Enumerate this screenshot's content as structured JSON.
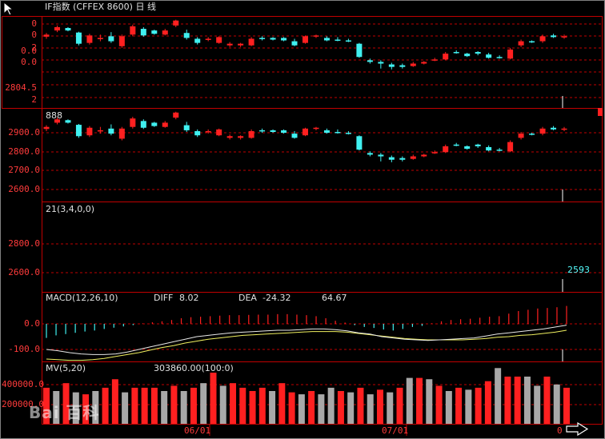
{
  "title": "IF指数 (CFFEX 8600) 日 线",
  "colors": {
    "up": "#ff2020",
    "down": "#40f0f0",
    "grid": "#c00000",
    "frame": "#c00000",
    "diff": "#e8e8e8",
    "dea": "#f0f060",
    "volume_gray": "#a8a8a8"
  },
  "panel1": {
    "axis_labels": [
      "0",
      "0",
      "2",
      "0.0",
      "0.0",
      "2804.5",
      "2"
    ],
    "right_marker": ""
  },
  "panel2": {
    "label": "888",
    "axis_labels": [
      "2900.0",
      "2800.0",
      "2700.0",
      "2600.0"
    ]
  },
  "panel3": {
    "label": "21(3,4,0,0)",
    "axis_labels": [
      "2800.0",
      "2600.0"
    ],
    "value": "2593"
  },
  "macd": {
    "label": "MACD(12,26,10)",
    "diff_label": "DIFF",
    "diff_value": "8.02",
    "dea_label": "DEA",
    "dea_value": "-24.32",
    "macd_value": "64.67",
    "axis_labels": [
      "0.0",
      "-100.0"
    ]
  },
  "volume": {
    "label": "MV(5,20)",
    "value": "303860.00(100:0)",
    "axis_labels": [
      "400000.0",
      "200000.0"
    ]
  },
  "dates": [
    "06/01",
    "07/01",
    "0"
  ],
  "watermark": "Bai 百科",
  "icons": [
    "arrow-cursor-icon",
    "right-arrow-nav-icon"
  ],
  "candles1": [
    {
      "o": 0.45,
      "c": 0.4,
      "h": 0.36,
      "l": 0.5,
      "up": true
    },
    {
      "o": 0.3,
      "c": 0.22,
      "h": 0.18,
      "l": 0.34,
      "up": true
    },
    {
      "o": 0.24,
      "c": 0.3,
      "h": 0.22,
      "l": 0.32,
      "up": false
    },
    {
      "o": 0.35,
      "c": 0.62,
      "h": 0.33,
      "l": 0.66,
      "up": false
    },
    {
      "o": 0.6,
      "c": 0.42,
      "h": 0.38,
      "l": 0.64,
      "up": true
    },
    {
      "o": 0.48,
      "c": 0.5,
      "h": 0.4,
      "l": 0.56,
      "up": true
    },
    {
      "o": 0.44,
      "c": 0.56,
      "h": 0.34,
      "l": 0.6,
      "up": false
    },
    {
      "o": 0.68,
      "c": 0.44,
      "h": 0.4,
      "l": 0.72,
      "up": true
    },
    {
      "o": 0.4,
      "c": 0.2,
      "h": 0.16,
      "l": 0.44,
      "up": true
    },
    {
      "o": 0.26,
      "c": 0.42,
      "h": 0.22,
      "l": 0.45,
      "up": false
    },
    {
      "o": 0.3,
      "c": 0.38,
      "h": 0.28,
      "l": 0.4,
      "up": false
    },
    {
      "o": 0.4,
      "c": 0.3,
      "h": 0.26,
      "l": 0.42,
      "up": true
    },
    {
      "o": 0.18,
      "c": 0.06,
      "h": 0.04,
      "l": 0.22,
      "up": true
    },
    {
      "o": 0.36,
      "c": 0.48,
      "h": 0.28,
      "l": 0.52,
      "up": false
    },
    {
      "o": 0.5,
      "c": 0.6,
      "h": 0.46,
      "l": 0.64,
      "up": false
    },
    {
      "o": 0.52,
      "c": 0.5,
      "h": 0.46,
      "l": 0.56,
      "up": true
    },
    {
      "o": 0.6,
      "c": 0.46,
      "h": 0.44,
      "l": 0.62,
      "up": true
    },
    {
      "o": 0.62,
      "c": 0.66,
      "h": 0.58,
      "l": 0.7,
      "up": true
    },
    {
      "o": 0.66,
      "c": 0.62,
      "h": 0.6,
      "l": 0.7,
      "up": true
    },
    {
      "o": 0.66,
      "c": 0.5,
      "h": 0.46,
      "l": 0.68,
      "up": true
    },
    {
      "o": 0.48,
      "c": 0.5,
      "h": 0.44,
      "l": 0.54,
      "up": false
    },
    {
      "o": 0.48,
      "c": 0.52,
      "h": 0.46,
      "l": 0.54,
      "up": false
    },
    {
      "o": 0.48,
      "c": 0.54,
      "h": 0.46,
      "l": 0.56,
      "up": false
    },
    {
      "o": 0.56,
      "c": 0.66,
      "h": 0.5,
      "l": 0.68,
      "up": false
    },
    {
      "o": 0.6,
      "c": 0.44,
      "h": 0.42,
      "l": 0.62,
      "up": true
    },
    {
      "o": 0.44,
      "c": 0.42,
      "h": 0.4,
      "l": 0.48,
      "up": true
    },
    {
      "o": 0.48,
      "c": 0.54,
      "h": 0.44,
      "l": 0.56,
      "up": false
    },
    {
      "o": 0.52,
      "c": 0.52,
      "h": 0.46,
      "l": 0.56,
      "up": false
    },
    {
      "o": 0.54,
      "c": 0.56,
      "h": 0.5,
      "l": 0.58,
      "up": false
    },
    {
      "o": 0.62,
      "c": 0.94,
      "h": 0.6,
      "l": 0.96,
      "up": false
    },
    {
      "o": 1.02,
      "c": 1.06,
      "h": 0.98,
      "l": 1.1,
      "up": false
    },
    {
      "o": 1.06,
      "c": 1.1,
      "h": 1.02,
      "l": 1.22,
      "up": false
    },
    {
      "o": 1.12,
      "c": 1.18,
      "h": 1.08,
      "l": 1.24,
      "up": false
    },
    {
      "o": 1.14,
      "c": 1.18,
      "h": 1.1,
      "l": 1.22,
      "up": false
    },
    {
      "o": 1.16,
      "c": 1.1,
      "h": 1.06,
      "l": 1.18,
      "up": true
    },
    {
      "o": 1.1,
      "c": 1.06,
      "h": 1.04,
      "l": 1.12,
      "up": true
    },
    {
      "o": 1.02,
      "c": 1.0,
      "h": 0.96,
      "l": 1.04,
      "up": true
    },
    {
      "o": 1.0,
      "c": 0.86,
      "h": 0.82,
      "l": 1.02,
      "up": true
    },
    {
      "o": 0.82,
      "c": 0.84,
      "h": 0.78,
      "l": 0.86,
      "up": false
    },
    {
      "o": 0.86,
      "c": 0.92,
      "h": 0.84,
      "l": 0.94,
      "up": false
    },
    {
      "o": 0.86,
      "c": 0.82,
      "h": 0.8,
      "l": 0.9,
      "up": false
    },
    {
      "o": 0.88,
      "c": 0.96,
      "h": 0.84,
      "l": 0.98,
      "up": false
    },
    {
      "o": 0.94,
      "c": 0.96,
      "h": 0.9,
      "l": 0.98,
      "up": false
    },
    {
      "o": 0.98,
      "c": 0.76,
      "h": 0.72,
      "l": 1.0,
      "up": true
    },
    {
      "o": 0.66,
      "c": 0.56,
      "h": 0.52,
      "l": 0.7,
      "up": true
    },
    {
      "o": 0.58,
      "c": 0.56,
      "h": 0.54,
      "l": 0.6,
      "up": false
    },
    {
      "o": 0.56,
      "c": 0.44,
      "h": 0.4,
      "l": 0.6,
      "up": true
    },
    {
      "o": 0.46,
      "c": 0.42,
      "h": 0.38,
      "l": 0.48,
      "up": false
    },
    {
      "o": 0.44,
      "c": 0.46,
      "h": 0.4,
      "l": 0.5,
      "up": true
    }
  ],
  "macd_bars": [
    -0.55,
    -0.45,
    -0.4,
    -0.35,
    -0.3,
    -0.26,
    -0.2,
    -0.15,
    -0.1,
    -0.05,
    0.02,
    0.06,
    0.1,
    0.15,
    0.22,
    0.26,
    0.28,
    0.3,
    0.32,
    0.34,
    0.34,
    0.35,
    0.36,
    0.36,
    0.38,
    0.38,
    0.36,
    0.34,
    0.3,
    0.22,
    0.12,
    0.05,
    -0.05,
    -0.12,
    -0.16,
    -0.22,
    -0.26,
    -0.2,
    -0.12,
    -0.08,
    0.02,
    0.1,
    0.15,
    0.18,
    0.2,
    0.24,
    0.28,
    0.3,
    0.4,
    0.5,
    0.55,
    0.6,
    0.62,
    0.65,
    0.7
  ],
  "diff_line": [
    0.4,
    0.42,
    0.45,
    0.47,
    0.48,
    0.48,
    0.47,
    0.44,
    0.4,
    0.36,
    0.32,
    0.28,
    0.24,
    0.2,
    0.18,
    0.16,
    0.14,
    0.13,
    0.12,
    0.11,
    0.1,
    0.1,
    0.09,
    0.08,
    0.08,
    0.09,
    0.11,
    0.14,
    0.16,
    0.2,
    0.22,
    0.24,
    0.25,
    0.26,
    0.25,
    0.24,
    0.23,
    0.22,
    0.19,
    0.16,
    0.14,
    0.12,
    0.1,
    0.08,
    0.05,
    0.02
  ],
  "dea_line": [
    0.55,
    0.56,
    0.57,
    0.57,
    0.56,
    0.54,
    0.51,
    0.48,
    0.45,
    0.41,
    0.37,
    0.34,
    0.3,
    0.27,
    0.24,
    0.22,
    0.2,
    0.18,
    0.17,
    0.16,
    0.15,
    0.14,
    0.13,
    0.12,
    0.12,
    0.12,
    0.13,
    0.15,
    0.17,
    0.19,
    0.21,
    0.23,
    0.24,
    0.25,
    0.25,
    0.25,
    0.25,
    0.24,
    0.23,
    0.21,
    0.2,
    0.18,
    0.17,
    0.15,
    0.13,
    0.1
  ],
  "volume_bars": [
    {
      "v": 0.55,
      "up": true
    },
    {
      "v": 0.5,
      "up": false
    },
    {
      "v": 0.62,
      "up": true
    },
    {
      "v": 0.48,
      "up": false
    },
    {
      "v": 0.45,
      "up": true
    },
    {
      "v": 0.5,
      "up": false
    },
    {
      "v": 0.55,
      "up": true
    },
    {
      "v": 0.68,
      "up": true
    },
    {
      "v": 0.48,
      "up": false
    },
    {
      "v": 0.55,
      "up": true
    },
    {
      "v": 0.55,
      "up": true
    },
    {
      "v": 0.55,
      "up": true
    },
    {
      "v": 0.5,
      "up": false
    },
    {
      "v": 0.58,
      "up": true
    },
    {
      "v": 0.5,
      "up": false
    },
    {
      "v": 0.55,
      "up": true
    },
    {
      "v": 0.62,
      "up": false
    },
    {
      "v": 0.78,
      "up": true
    },
    {
      "v": 0.58,
      "up": false
    },
    {
      "v": 0.62,
      "up": true
    },
    {
      "v": 0.55,
      "up": true
    },
    {
      "v": 0.5,
      "up": true
    },
    {
      "v": 0.55,
      "up": true
    },
    {
      "v": 0.5,
      "up": false
    },
    {
      "v": 0.62,
      "up": true
    },
    {
      "v": 0.48,
      "up": true
    },
    {
      "v": 0.45,
      "up": false
    },
    {
      "v": 0.5,
      "up": true
    },
    {
      "v": 0.45,
      "up": false
    },
    {
      "v": 0.55,
      "up": false
    },
    {
      "v": 0.5,
      "up": true
    },
    {
      "v": 0.48,
      "up": false
    },
    {
      "v": 0.55,
      "up": true
    },
    {
      "v": 0.45,
      "up": false
    },
    {
      "v": 0.52,
      "up": true
    },
    {
      "v": 0.48,
      "up": false
    },
    {
      "v": 0.55,
      "up": true
    },
    {
      "v": 0.7,
      "up": false
    },
    {
      "v": 0.7,
      "up": true
    },
    {
      "v": 0.68,
      "up": false
    },
    {
      "v": 0.58,
      "up": true
    },
    {
      "v": 0.5,
      "up": false
    },
    {
      "v": 0.55,
      "up": true
    },
    {
      "v": 0.52,
      "up": false
    },
    {
      "v": 0.55,
      "up": true
    },
    {
      "v": 0.65,
      "up": true
    },
    {
      "v": 0.85,
      "up": false
    },
    {
      "v": 0.72,
      "up": true
    },
    {
      "v": 0.72,
      "up": true
    },
    {
      "v": 0.72,
      "up": false
    },
    {
      "v": 0.58,
      "up": false
    },
    {
      "v": 0.72,
      "up": true
    },
    {
      "v": 0.6,
      "up": false
    },
    {
      "v": 0.55,
      "up": true
    }
  ]
}
